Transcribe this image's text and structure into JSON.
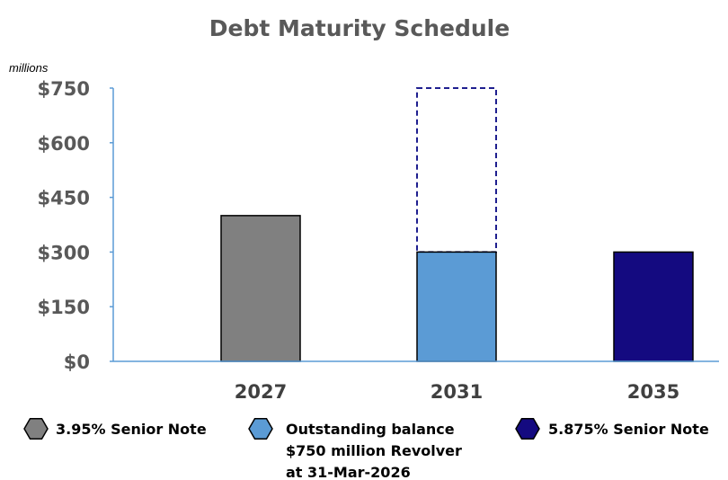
{
  "chart_data": {
    "type": "bar",
    "title": "Debt Maturity Schedule",
    "unit_label": "millions",
    "categories": [
      "2027",
      "2031",
      "2035"
    ],
    "values": [
      400,
      300,
      300
    ],
    "capacity": [
      null,
      750,
      null
    ],
    "ylim": [
      0,
      750
    ],
    "yticks": [
      0,
      150,
      300,
      450,
      600,
      750
    ],
    "ytick_labels": [
      "$0",
      "$150",
      "$300",
      "$450",
      "$600",
      "$750"
    ],
    "xlabel": "",
    "ylabel": "",
    "grid": false,
    "legend_position": "bottom",
    "colors": [
      "#808080",
      "#5B9BD5",
      "#140A80"
    ],
    "capacity_border_color": "#1F1F8F",
    "axis_color": "#5B9BD5",
    "legend": [
      {
        "lines": [
          "3.95% Senior Note"
        ],
        "color": "#808080"
      },
      {
        "lines": [
          "Outstanding balance",
          "$750 million Revolver",
          "at 31-Mar-2026"
        ],
        "color": "#5B9BD5"
      },
      {
        "lines": [
          "5.875% Senior Note"
        ],
        "color": "#140A80"
      }
    ]
  }
}
